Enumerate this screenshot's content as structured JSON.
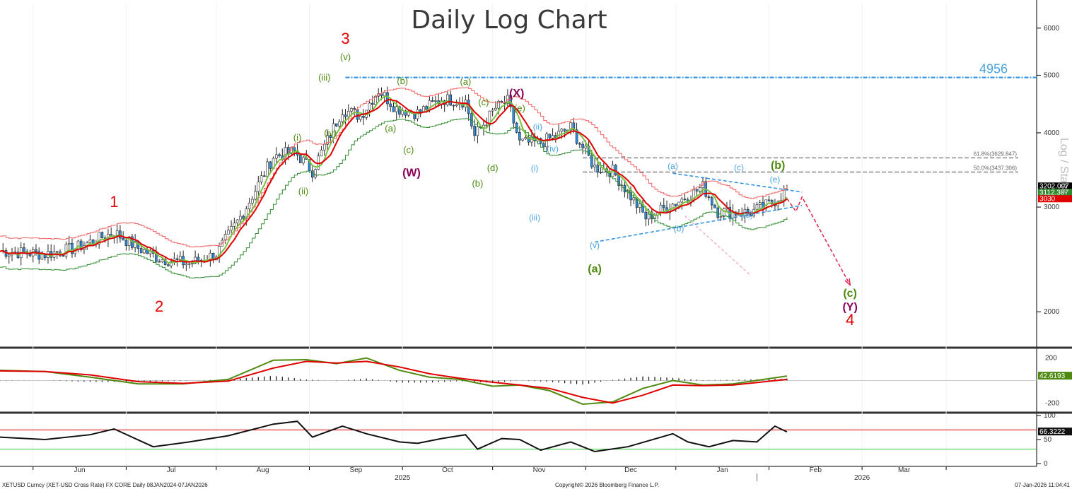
{
  "chart_data": {
    "type": "candlestick",
    "title": "Daily Log Chart",
    "scale": "log",
    "y_side_label": "Log / Stack",
    "instrument_line": "XETUSD Curncy (XET-USD Cross Rate) FX CORE Daily 08JAN2024-07JAN2026",
    "copyright": "Copyright© 2026 Bloomberg Finance L.P.",
    "timestamp": "07-Jan-2026 11:04:41",
    "x_months": [
      "Jun",
      "Jul",
      "Aug",
      "Sep",
      "Oct",
      "Nov",
      "Dec",
      "Jan",
      "Feb",
      "Mar"
    ],
    "x_years": [
      "2025",
      "2026"
    ],
    "y_ticks": [
      2000,
      3000,
      4000,
      5000,
      6000
    ],
    "y_range": [
      1750,
      6600
    ],
    "price_path": [
      {
        "d": "2025-04-20",
        "v": 2530
      },
      {
        "d": "2025-05-05",
        "v": 2500
      },
      {
        "d": "2025-05-15",
        "v": 2560
      },
      {
        "d": "2025-05-28",
        "v": 2720
      },
      {
        "d": "2025-06-05",
        "v": 2560
      },
      {
        "d": "2025-06-12",
        "v": 2460
      },
      {
        "d": "2025-06-22",
        "v": 2410
      },
      {
        "d": "2025-07-01",
        "v": 2500
      },
      {
        "d": "2025-07-10",
        "v": 2940
      },
      {
        "d": "2025-07-20",
        "v": 3650
      },
      {
        "d": "2025-07-27",
        "v": 3720
      },
      {
        "d": "2025-08-02",
        "v": 3450
      },
      {
        "d": "2025-08-12",
        "v": 4380
      },
      {
        "d": "2025-08-18",
        "v": 4270
      },
      {
        "d": "2025-08-24",
        "v": 4720
      },
      {
        "d": "2025-08-30",
        "v": 4400
      },
      {
        "d": "2025-09-06",
        "v": 4320
      },
      {
        "d": "2025-09-14",
        "v": 4560
      },
      {
        "d": "2025-09-22",
        "v": 4520
      },
      {
        "d": "2025-09-25",
        "v": 3950
      },
      {
        "d": "2025-10-02",
        "v": 4400
      },
      {
        "d": "2025-10-06",
        "v": 4520
      },
      {
        "d": "2025-10-10",
        "v": 3850
      },
      {
        "d": "2025-10-17",
        "v": 3850
      },
      {
        "d": "2025-10-22",
        "v": 3950
      },
      {
        "d": "2025-10-27",
        "v": 4080
      },
      {
        "d": "2025-11-04",
        "v": 3500
      },
      {
        "d": "2025-11-10",
        "v": 3450
      },
      {
        "d": "2025-11-21",
        "v": 2880
      },
      {
        "d": "2025-11-28",
        "v": 3000
      },
      {
        "d": "2025-12-06",
        "v": 3150
      },
      {
        "d": "2025-12-10",
        "v": 3250
      },
      {
        "d": "2025-12-15",
        "v": 2950
      },
      {
        "d": "2025-12-20",
        "v": 2940
      },
      {
        "d": "2025-12-26",
        "v": 2940
      },
      {
        "d": "2026-01-02",
        "v": 3050
      },
      {
        "d": "2026-01-07",
        "v": 3200
      }
    ],
    "resistance_line": {
      "value": 4956,
      "label": "4956"
    },
    "fib_levels": [
      {
        "label": "61.8%(3629.847)",
        "value": 3629.847
      },
      {
        "label": "50.0%(3437.306)",
        "value": 3437.306
      }
    ],
    "right_value_labels": [
      {
        "value": 3202.097,
        "text": "3202.097",
        "color": "#000000",
        "text_color": "#ffffff"
      },
      {
        "value": 3112.367,
        "text": "3112.367",
        "color": "#2e8b2e",
        "text_color": "#ffffff"
      },
      {
        "value": 3030,
        "text": "3030",
        "color": "#e00000",
        "text_color": "#ffffff"
      }
    ],
    "wave_labels": [
      {
        "text": "1",
        "d": "2025-05-28",
        "v": 3000,
        "style": "red"
      },
      {
        "text": "2",
        "d": "2025-06-12",
        "v": 2000,
        "style": "red"
      },
      {
        "text": "3",
        "d": "2025-08-13",
        "v": 5650,
        "style": "red"
      },
      {
        "text": "4",
        "d": "2026-01-28",
        "v": 1900,
        "style": "red"
      },
      {
        "text": "(i)",
        "d": "2025-07-28",
        "v": 3880,
        "style": "green"
      },
      {
        "text": "(ii)",
        "d": "2025-07-30",
        "v": 3150,
        "style": "green"
      },
      {
        "text": "(iii)",
        "d": "2025-08-06",
        "v": 4900,
        "style": "green"
      },
      {
        "text": "(iv)",
        "d": "2025-08-08",
        "v": 3950,
        "style": "green"
      },
      {
        "text": "(v)",
        "d": "2025-08-13",
        "v": 5300,
        "style": "green"
      },
      {
        "text": "(a)",
        "d": "2025-08-28",
        "v": 4020,
        "style": "green"
      },
      {
        "text": "(b)",
        "d": "2025-09-01",
        "v": 4830,
        "style": "green"
      },
      {
        "text": "(c)",
        "d": "2025-09-03",
        "v": 3700,
        "style": "green"
      },
      {
        "text": "(a)",
        "d": "2025-09-22",
        "v": 4820,
        "style": "green"
      },
      {
        "text": "(b)",
        "d": "2025-09-26",
        "v": 3250,
        "style": "green"
      },
      {
        "text": "(c)",
        "d": "2025-09-28",
        "v": 4450,
        "style": "green"
      },
      {
        "text": "(d)",
        "d": "2025-10-01",
        "v": 3450,
        "style": "green"
      },
      {
        "text": "(e)",
        "d": "2025-10-10",
        "v": 4350,
        "style": "green"
      },
      {
        "text": "(i)",
        "d": "2025-10-15",
        "v": 3450,
        "style": "blue"
      },
      {
        "text": "(ii)",
        "d": "2025-10-16",
        "v": 4050,
        "style": "blue"
      },
      {
        "text": "(iii)",
        "d": "2025-10-15",
        "v": 2850,
        "style": "blue"
      },
      {
        "text": "(iv)",
        "d": "2025-10-21",
        "v": 3720,
        "style": "blue"
      },
      {
        "text": "(v)",
        "d": "2025-11-04",
        "v": 2560,
        "style": "blue"
      },
      {
        "text": "(a)",
        "d": "2025-11-30",
        "v": 3480,
        "style": "blue"
      },
      {
        "text": "(b)",
        "d": "2025-12-02",
        "v": 2730,
        "style": "blue"
      },
      {
        "text": "(c)",
        "d": "2025-12-22",
        "v": 3460,
        "style": "blue"
      },
      {
        "text": "(d)",
        "d": "2025-12-25",
        "v": 2880,
        "style": "blue"
      },
      {
        "text": "(e)",
        "d": "2026-01-03",
        "v": 3300,
        "style": "blue"
      },
      {
        "text": "(W)",
        "d": "2025-09-04",
        "v": 3380,
        "style": "purple"
      },
      {
        "text": "(X)",
        "d": "2025-10-09",
        "v": 4600,
        "style": "purple"
      },
      {
        "text": "(Y)",
        "d": "2026-01-28",
        "v": 2010,
        "style": "purple"
      },
      {
        "text": "(a)",
        "d": "2025-11-04",
        "v": 2330,
        "style": "greenbig"
      },
      {
        "text": "(b)",
        "d": "2026-01-04",
        "v": 3480,
        "style": "greenbig"
      },
      {
        "text": "(c)",
        "d": "2026-01-28",
        "v": 2120,
        "style": "greenbig"
      }
    ],
    "projection_path": [
      {
        "d": "2026-01-07",
        "v": 3100
      },
      {
        "d": "2026-01-10",
        "v": 2950
      },
      {
        "d": "2026-01-12",
        "v": 3120
      },
      {
        "d": "2026-01-28",
        "v": 2220
      }
    ],
    "triangle_upper": [
      {
        "d": "2025-11-30",
        "v": 3420
      },
      {
        "d": "2026-01-12",
        "v": 3180
      }
    ],
    "triangle_lower": [
      {
        "d": "2025-11-04",
        "v": 2620
      },
      {
        "d": "2026-01-12",
        "v": 3020
      }
    ],
    "macd": {
      "value_label": "42.6193",
      "ticks": [
        200,
        -200
      ],
      "line_points": [
        {
          "d": "2025-04-20",
          "v": 90
        },
        {
          "d": "2025-05-05",
          "v": 80
        },
        {
          "d": "2025-05-20",
          "v": 30
        },
        {
          "d": "2025-06-05",
          "v": -30
        },
        {
          "d": "2025-06-20",
          "v": -30
        },
        {
          "d": "2025-07-05",
          "v": 10
        },
        {
          "d": "2025-07-20",
          "v": 180
        },
        {
          "d": "2025-07-31",
          "v": 185
        },
        {
          "d": "2025-08-10",
          "v": 150
        },
        {
          "d": "2025-08-20",
          "v": 200
        },
        {
          "d": "2025-08-31",
          "v": 90
        },
        {
          "d": "2025-09-10",
          "v": 30
        },
        {
          "d": "2025-09-20",
          "v": 10
        },
        {
          "d": "2025-10-01",
          "v": -50
        },
        {
          "d": "2025-10-10",
          "v": -40
        },
        {
          "d": "2025-10-20",
          "v": -90
        },
        {
          "d": "2025-10-31",
          "v": -210
        },
        {
          "d": "2025-11-10",
          "v": -190
        },
        {
          "d": "2025-11-20",
          "v": -70
        },
        {
          "d": "2025-11-30",
          "v": 0
        },
        {
          "d": "2025-12-10",
          "v": -40
        },
        {
          "d": "2025-12-20",
          "v": -30
        },
        {
          "d": "2026-01-07",
          "v": 40
        }
      ],
      "signal_points": [
        {
          "d": "2025-04-20",
          "v": 85
        },
        {
          "d": "2025-05-05",
          "v": 80
        },
        {
          "d": "2025-05-20",
          "v": 50
        },
        {
          "d": "2025-06-05",
          "v": -10
        },
        {
          "d": "2025-06-20",
          "v": -25
        },
        {
          "d": "2025-07-05",
          "v": -5
        },
        {
          "d": "2025-07-20",
          "v": 110
        },
        {
          "d": "2025-07-31",
          "v": 170
        },
        {
          "d": "2025-08-10",
          "v": 155
        },
        {
          "d": "2025-08-20",
          "v": 170
        },
        {
          "d": "2025-08-31",
          "v": 120
        },
        {
          "d": "2025-09-10",
          "v": 60
        },
        {
          "d": "2025-09-20",
          "v": 20
        },
        {
          "d": "2025-10-01",
          "v": -15
        },
        {
          "d": "2025-10-10",
          "v": -40
        },
        {
          "d": "2025-10-20",
          "v": -70
        },
        {
          "d": "2025-10-31",
          "v": -150
        },
        {
          "d": "2025-11-10",
          "v": -200
        },
        {
          "d": "2025-11-20",
          "v": -130
        },
        {
          "d": "2025-11-30",
          "v": -40
        },
        {
          "d": "2025-12-10",
          "v": -45
        },
        {
          "d": "2025-12-20",
          "v": -40
        },
        {
          "d": "2026-01-07",
          "v": 10
        }
      ]
    },
    "rsi": {
      "value_label": "66.3222",
      "ticks": [
        100,
        50,
        0
      ],
      "overbought": 70,
      "oversold": 30,
      "points": [
        {
          "d": "2025-04-20",
          "v": 55
        },
        {
          "d": "2025-05-05",
          "v": 50
        },
        {
          "d": "2025-05-20",
          "v": 60
        },
        {
          "d": "2025-05-28",
          "v": 72
        },
        {
          "d": "2025-06-10",
          "v": 35
        },
        {
          "d": "2025-06-22",
          "v": 45
        },
        {
          "d": "2025-07-05",
          "v": 58
        },
        {
          "d": "2025-07-20",
          "v": 82
        },
        {
          "d": "2025-07-28",
          "v": 88
        },
        {
          "d": "2025-08-02",
          "v": 55
        },
        {
          "d": "2025-08-12",
          "v": 78
        },
        {
          "d": "2025-08-20",
          "v": 62
        },
        {
          "d": "2025-08-31",
          "v": 45
        },
        {
          "d": "2025-09-06",
          "v": 42
        },
        {
          "d": "2025-09-14",
          "v": 52
        },
        {
          "d": "2025-09-22",
          "v": 60
        },
        {
          "d": "2025-09-26",
          "v": 30
        },
        {
          "d": "2025-10-04",
          "v": 52
        },
        {
          "d": "2025-10-10",
          "v": 50
        },
        {
          "d": "2025-10-17",
          "v": 28
        },
        {
          "d": "2025-10-27",
          "v": 45
        },
        {
          "d": "2025-11-04",
          "v": 25
        },
        {
          "d": "2025-11-15",
          "v": 35
        },
        {
          "d": "2025-11-30",
          "v": 62
        },
        {
          "d": "2025-12-05",
          "v": 45
        },
        {
          "d": "2025-12-12",
          "v": 35
        },
        {
          "d": "2025-12-20",
          "v": 48
        },
        {
          "d": "2025-12-28",
          "v": 45
        },
        {
          "d": "2026-01-03",
          "v": 78
        },
        {
          "d": "2026-01-07",
          "v": 66
        }
      ]
    }
  }
}
